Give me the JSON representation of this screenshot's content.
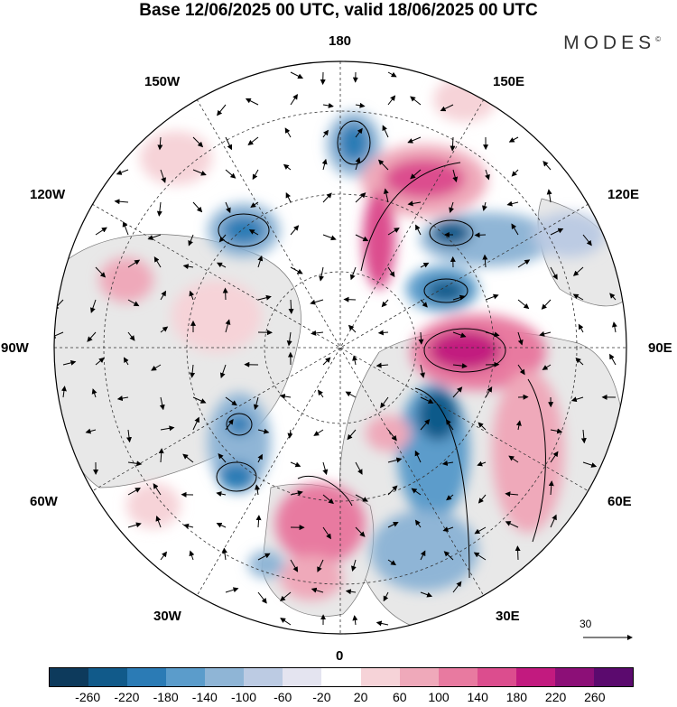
{
  "title": "Base 12/06/2025 00 UTC, valid 18/06/2025 00 UTC",
  "brand": "MODES",
  "brand_mark": "©",
  "longitude_labels": {
    "top": "180",
    "top_left": "150W",
    "top_right": "150E",
    "upper_left": "120W",
    "upper_right": "120E",
    "left": "90W",
    "right": "90E",
    "lower_left": "60W",
    "lower_right": "60E",
    "bottom_left": "30W",
    "bottom_right": "30E",
    "bottom": "0"
  },
  "reference_vector_label": "30",
  "colorbar": {
    "labels": [
      "-260",
      "-220",
      "-180",
      "-140",
      "-100",
      "-60",
      "-20",
      "20",
      "60",
      "100",
      "140",
      "180",
      "220",
      "260"
    ],
    "colors": [
      "#0d3a5c",
      "#115a8a",
      "#2b7bb5",
      "#5b9ccb",
      "#8fb5d6",
      "#bccbe3",
      "#e4e4f0",
      "#ffffff",
      "#f6d3d8",
      "#efa9ba",
      "#e87aa0",
      "#dc4d8e",
      "#c21a7f",
      "#8c0f77",
      "#5b0a6e"
    ]
  },
  "chart_data": {
    "type": "heatmap",
    "projection": "north polar stereographic",
    "title": "Base 12/06/2025 00 UTC, valid 18/06/2025 00 UTC",
    "color_scale_ticks": [
      -260,
      -220,
      -180,
      -140,
      -100,
      -60,
      -20,
      20,
      60,
      100,
      140,
      180,
      220,
      260
    ],
    "reference_vector": 30,
    "longitude_ticks": [
      "180",
      "150E",
      "120E",
      "90E",
      "60E",
      "30E",
      "0",
      "30W",
      "60W",
      "90W",
      "120W",
      "150W"
    ]
  }
}
